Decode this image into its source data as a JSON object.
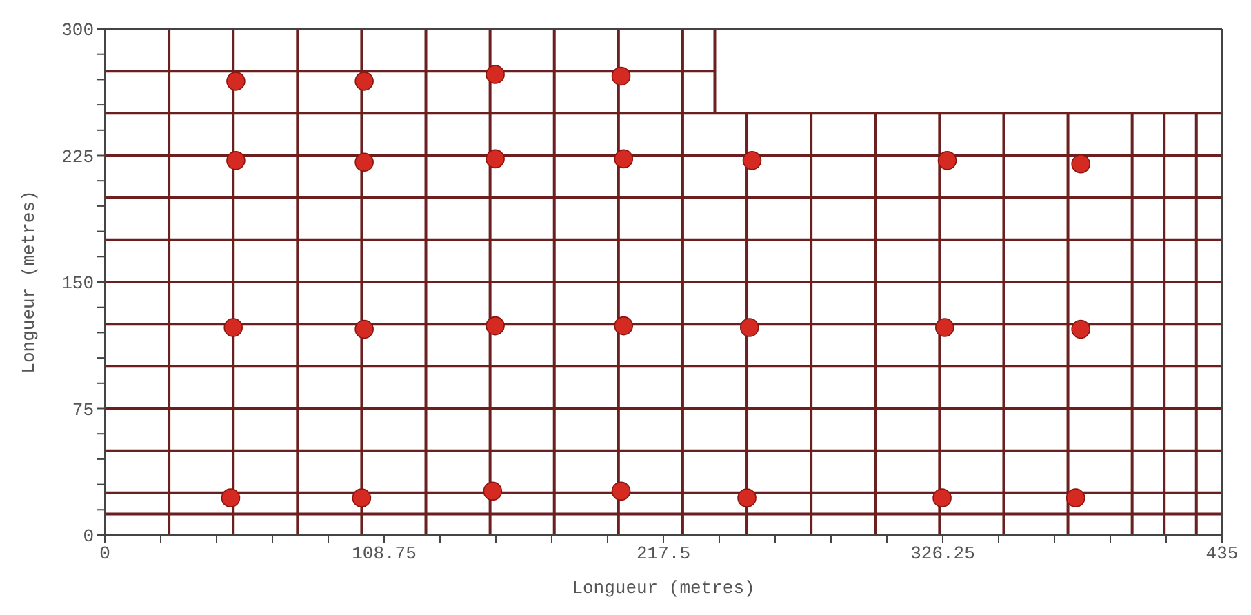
{
  "chart_data": {
    "type": "scatter",
    "xlabel": "Longueur (metres)",
    "ylabel": "Longueur (metres)",
    "xlim": [
      0,
      435
    ],
    "ylim": [
      0,
      300
    ],
    "xticks": [
      0,
      {
        "value": 21.75,
        "label": null
      },
      {
        "value": 43.5,
        "label": null
      },
      {
        "value": 65.25,
        "label": null
      },
      {
        "value": 87,
        "label": null
      },
      108.75,
      {
        "value": 130.5,
        "label": null
      },
      {
        "value": 152.25,
        "label": null
      },
      {
        "value": 174,
        "label": null
      },
      {
        "value": 195.75,
        "label": null
      },
      217.5,
      {
        "value": 239.25,
        "label": null
      },
      {
        "value": 261,
        "label": null
      },
      {
        "value": 282.75,
        "label": null
      },
      {
        "value": 304.5,
        "label": null
      },
      326.25,
      {
        "value": 348,
        "label": null
      },
      {
        "value": 369.75,
        "label": null
      },
      {
        "value": 391.5,
        "label": null
      },
      {
        "value": 413.25,
        "label": null
      },
      435
    ],
    "yticks": [
      0,
      {
        "value": 15,
        "label": null
      },
      {
        "value": 30,
        "label": null
      },
      {
        "value": 45,
        "label": null
      },
      {
        "value": 60,
        "label": null
      },
      75,
      {
        "value": 90,
        "label": null
      },
      {
        "value": 105,
        "label": null
      },
      {
        "value": 120,
        "label": null
      },
      {
        "value": 135,
        "label": null
      },
      150,
      {
        "value": 165,
        "label": null
      },
      {
        "value": 180,
        "label": null
      },
      {
        "value": 195,
        "label": null
      },
      {
        "value": 210,
        "label": null
      },
      225,
      {
        "value": 240,
        "label": null
      },
      {
        "value": 255,
        "label": null
      },
      {
        "value": 270,
        "label": null
      },
      {
        "value": 285,
        "label": null
      },
      300
    ],
    "grid": false,
    "series": [
      {
        "type": "line",
        "marker": "none",
        "color": "#6b1f1f",
        "x": [
          25,
          25
        ],
        "values": [
          0,
          300
        ]
      },
      {
        "type": "line",
        "marker": "none",
        "color": "#6b1f1f",
        "x": [
          50,
          50
        ],
        "values": [
          0,
          300
        ]
      },
      {
        "type": "line",
        "marker": "none",
        "color": "#6b1f1f",
        "x": [
          75,
          75
        ],
        "values": [
          0,
          300
        ]
      },
      {
        "type": "line",
        "marker": "none",
        "color": "#6b1f1f",
        "x": [
          100,
          100
        ],
        "values": [
          0,
          300
        ]
      },
      {
        "type": "line",
        "marker": "none",
        "color": "#6b1f1f",
        "x": [
          125,
          125
        ],
        "values": [
          0,
          300
        ]
      },
      {
        "type": "line",
        "marker": "none",
        "color": "#6b1f1f",
        "x": [
          150,
          150
        ],
        "values": [
          0,
          300
        ]
      },
      {
        "type": "line",
        "marker": "none",
        "color": "#6b1f1f",
        "x": [
          175,
          175
        ],
        "values": [
          0,
          300
        ]
      },
      {
        "type": "line",
        "marker": "none",
        "color": "#6b1f1f",
        "x": [
          200,
          200
        ],
        "values": [
          0,
          300
        ]
      },
      {
        "type": "line",
        "marker": "none",
        "color": "#6b1f1f",
        "x": [
          225,
          225
        ],
        "values": [
          0,
          300
        ]
      },
      {
        "type": "line",
        "marker": "none",
        "color": "#6b1f1f",
        "x": [
          237.5,
          237.5
        ],
        "values": [
          250,
          300
        ]
      },
      {
        "type": "line",
        "marker": "none",
        "color": "#6b1f1f",
        "x": [
          250,
          250
        ],
        "values": [
          0,
          250
        ]
      },
      {
        "type": "line",
        "marker": "none",
        "color": "#6b1f1f",
        "x": [
          275,
          275
        ],
        "values": [
          0,
          250
        ]
      },
      {
        "type": "line",
        "marker": "none",
        "color": "#6b1f1f",
        "x": [
          300,
          300
        ],
        "values": [
          0,
          250
        ]
      },
      {
        "type": "line",
        "marker": "none",
        "color": "#6b1f1f",
        "x": [
          325,
          325
        ],
        "values": [
          0,
          250
        ]
      },
      {
        "type": "line",
        "marker": "none",
        "color": "#6b1f1f",
        "x": [
          350,
          350
        ],
        "values": [
          0,
          250
        ]
      },
      {
        "type": "line",
        "marker": "none",
        "color": "#6b1f1f",
        "x": [
          375,
          375
        ],
        "values": [
          0,
          250
        ]
      },
      {
        "type": "line",
        "marker": "none",
        "color": "#6b1f1f",
        "x": [
          400,
          400
        ],
        "values": [
          0,
          250
        ]
      },
      {
        "type": "line",
        "marker": "none",
        "color": "#6b1f1f",
        "x": [
          412.5,
          412.5
        ],
        "values": [
          0,
          250
        ]
      },
      {
        "type": "line",
        "marker": "none",
        "color": "#6b1f1f",
        "x": [
          425,
          425
        ],
        "values": [
          0,
          250
        ]
      },
      {
        "type": "line",
        "marker": "none",
        "color": "#6b1f1f",
        "x": [
          0,
          435
        ],
        "values": [
          12.5,
          12.5
        ]
      },
      {
        "type": "line",
        "marker": "none",
        "color": "#6b1f1f",
        "x": [
          0,
          435
        ],
        "values": [
          25,
          25
        ]
      },
      {
        "type": "line",
        "marker": "none",
        "color": "#6b1f1f",
        "x": [
          0,
          435
        ],
        "values": [
          50,
          50
        ]
      },
      {
        "type": "line",
        "marker": "none",
        "color": "#6b1f1f",
        "x": [
          0,
          435
        ],
        "values": [
          75,
          75
        ]
      },
      {
        "type": "line",
        "marker": "none",
        "color": "#6b1f1f",
        "x": [
          0,
          435
        ],
        "values": [
          100,
          100
        ]
      },
      {
        "type": "line",
        "marker": "none",
        "color": "#6b1f1f",
        "x": [
          0,
          435
        ],
        "values": [
          125,
          125
        ]
      },
      {
        "type": "line",
        "marker": "none",
        "color": "#6b1f1f",
        "x": [
          0,
          435
        ],
        "values": [
          150,
          150
        ]
      },
      {
        "type": "line",
        "marker": "none",
        "color": "#6b1f1f",
        "x": [
          0,
          435
        ],
        "values": [
          175,
          175
        ]
      },
      {
        "type": "line",
        "marker": "none",
        "color": "#6b1f1f",
        "x": [
          0,
          435
        ],
        "values": [
          200,
          200
        ]
      },
      {
        "type": "line",
        "marker": "none",
        "color": "#6b1f1f",
        "x": [
          0,
          435
        ],
        "values": [
          225,
          225
        ]
      },
      {
        "type": "line",
        "marker": "none",
        "color": "#6b1f1f",
        "x": [
          0,
          435
        ],
        "values": [
          250,
          250
        ]
      },
      {
        "type": "line",
        "marker": "none",
        "color": "#6b1f1f",
        "x": [
          0,
          237.5
        ],
        "values": [
          275,
          275
        ]
      },
      {
        "type": "scatter",
        "marker": "circle",
        "color": "#d42a22",
        "x": [
          51,
          101,
          152,
          201,
          51,
          101,
          152,
          202,
          252,
          328,
          380,
          50,
          101,
          152,
          202,
          251,
          327,
          380,
          49,
          100,
          151,
          201,
          250,
          326,
          378
        ],
        "values": [
          269,
          269,
          273,
          272,
          222,
          221,
          223,
          223,
          222,
          222,
          220,
          123,
          122,
          124,
          124,
          123,
          123,
          122,
          22,
          22,
          26,
          26,
          22,
          22,
          22
        ]
      }
    ]
  }
}
